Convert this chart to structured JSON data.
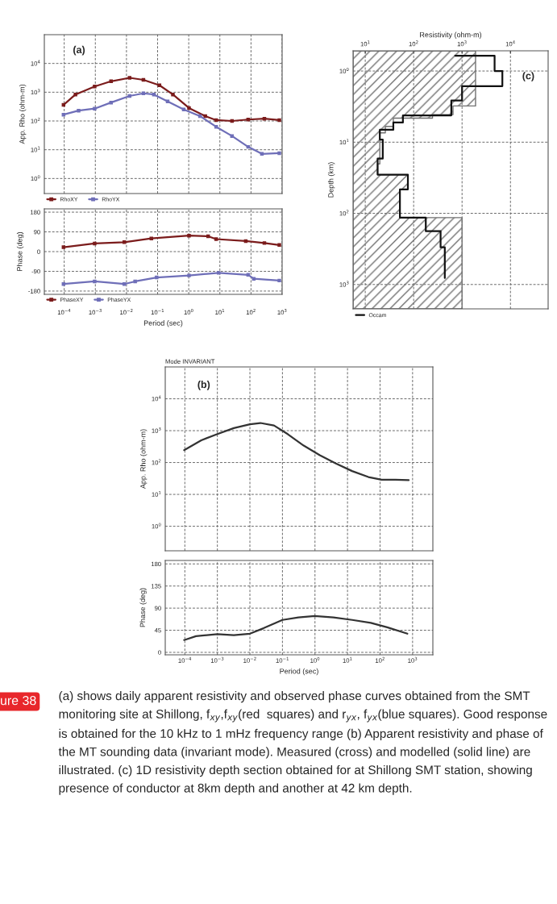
{
  "chart_data": [
    {
      "type": "line",
      "ylabel": "App. Rho (ohm-m)",
      "log": "xy",
      "marker": "square",
      "grid": true,
      "legend": "bottom left",
      "tick_labels": "y",
      "xlim": [
        2.3e-05,
        1000
      ],
      "ylim": [
        0.3,
        100000
      ],
      "xticks": [
        {
          "value": 0.0001,
          "label": null
        },
        {
          "value": 0.001,
          "label": null
        },
        {
          "value": 0.01,
          "label": null
        },
        {
          "value": 0.1,
          "label": null
        },
        {
          "value": 1,
          "label": null
        },
        {
          "value": 10,
          "label": null
        },
        {
          "value": 100,
          "label": null
        },
        {
          "value": 1000,
          "label": null
        }
      ],
      "yticks": [
        {
          "value": 1,
          "label": "10$^{0}$"
        },
        {
          "value": 10,
          "label": "10$^{1}$"
        },
        {
          "value": 100,
          "label": "10$^{2}$"
        },
        {
          "value": 1000,
          "label": "10$^{3}$"
        },
        {
          "value": 10000,
          "label": "10$^{4}$"
        }
      ],
      "annotations": [
        "(a)"
      ],
      "series": [
        {
          "name": "RhoXY",
          "color": "#7b1c1c",
          "x": [
            9.5e-05,
            0.00023,
            0.00095,
            0.0032,
            0.0126,
            0.035,
            0.115,
            0.31,
            1.02,
            3.4,
            7.6,
            24.5,
            81,
            269,
            813
          ],
          "values": [
            363,
            832,
            1585,
            2399,
            3162,
            2692,
            1738,
            832,
            282,
            148,
            107,
            100,
            112,
            120,
            107
          ]
        },
        {
          "name": "RhoYX",
          "color": "#6f6fb8",
          "x": [
            9.5e-05,
            0.00029,
            0.00095,
            0.0032,
            0.0126,
            0.035,
            0.076,
            0.21,
            0.69,
            2.3,
            7.6,
            24.5,
            81,
            224,
            813
          ],
          "values": [
            166,
            229,
            269,
            437,
            741,
            912,
            832,
            479,
            251,
            148,
            63,
            30,
            12.6,
            7.2,
            7.6
          ]
        }
      ]
    },
    {
      "type": "line",
      "ylabel": "Phase (deg)",
      "xlabel": "Period (sec)",
      "log": "x",
      "marker": "square",
      "grid": true,
      "legend": "bottom left",
      "xlim": [
        2.3e-05,
        1000
      ],
      "ylim": [
        -195,
        195
      ],
      "xticks": [
        {
          "value": 0.0001,
          "label": "10$^{−4}$"
        },
        {
          "value": 0.001,
          "label": "10$^{−3}$"
        },
        {
          "value": 0.01,
          "label": "10$^{−2}$"
        },
        {
          "value": 0.1,
          "label": "10$^{−1}$"
        },
        {
          "value": 1,
          "label": "10$^{0}$"
        },
        {
          "value": 10,
          "label": "10$^{1}$"
        },
        {
          "value": 100,
          "label": "10$^{2}$"
        },
        {
          "value": 1000,
          "label": "10$^{3}$"
        }
      ],
      "yticks": [
        -180,
        -90,
        0,
        90,
        180
      ],
      "series": [
        {
          "name": "PhaseXY",
          "color": "#7b1c1c",
          "x": [
            9.5e-05,
            0.00095,
            0.0085,
            0.063,
            1.02,
            4.2,
            7.6,
            68,
            269,
            813
          ],
          "values": [
            20,
            37,
            43,
            60,
            73,
            70,
            57,
            48,
            39,
            30
          ]
        },
        {
          "name": "PhaseYX",
          "color": "#6f6fb8",
          "x": [
            9.5e-05,
            0.00095,
            0.0085,
            0.019,
            0.093,
            1.02,
            9.1,
            81,
            123,
            813
          ],
          "values": [
            -148,
            -136,
            -148,
            -136,
            -118,
            -109,
            -97,
            -106,
            -124,
            -132
          ]
        }
      ]
    },
    {
      "type": "line",
      "xlabel": "Resistivity (ohm-m)",
      "ylabel": "Depth (km)",
      "log": "xy",
      "orientation": "horizontal",
      "grid": true,
      "legend": "bottom left",
      "xlim": [
        5.6,
        60000
      ],
      "ylim": [
        2200,
        0.52
      ],
      "xticks": [
        {
          "value": 10,
          "label": "10$^{1}$"
        },
        {
          "value": 100,
          "label": "10$^{2}$"
        },
        {
          "value": 1000,
          "label": "10$^{3}$"
        },
        {
          "value": 10000,
          "label": "10$^{4}$"
        }
      ],
      "yticks": [
        {
          "value": 1,
          "label": "10$^{0}$"
        },
        {
          "value": 10,
          "label": "10$^{1}$"
        },
        {
          "value": 100,
          "label": "10$^{2}$"
        },
        {
          "value": 1000,
          "label": "10$^{3}$"
        }
      ],
      "annotations": [
        "(c)"
      ],
      "series": [
        {
          "type": "area",
          "color": "#707070",
          "x": [
            0.52,
            3.1,
            3.1,
            4.1,
            4.1,
            4.6,
            4.6,
            6.0,
            6.0,
            7.4,
            7.4,
            20.2,
            20.2,
            28.6,
            28.6,
            46,
            46,
            115,
            115,
            2200
          ],
          "values": [
            1900,
            1900,
            650,
            650,
            245,
            245,
            38,
            38,
            26,
            26,
            20,
            20,
            18,
            18,
            76,
            76,
            52,
            52,
            1000,
            1000
          ]
        },
        {
          "name": "Occam",
          "color": "#111111",
          "x": [
            0.61,
            0.61,
            1.0,
            1.0,
            1.63,
            1.63,
            2.6,
            2.6,
            4.2,
            4.2,
            5.3,
            5.3,
            6.7,
            6.7,
            9.2,
            9.2,
            17,
            17,
            28.6,
            28.6,
            46,
            46,
            115,
            115,
            178,
            178,
            300,
            300,
            810
          ],
          "values": [
            720,
            4700,
            4700,
            6800,
            6800,
            1000,
            1000,
            600,
            600,
            60,
            60,
            38,
            38,
            20,
            20,
            23,
            23,
            18,
            18,
            76,
            76,
            52,
            52,
            178,
            178,
            360,
            360,
            440,
            440
          ]
        }
      ]
    },
    {
      "type": "line",
      "title": "Mode INVARIANT",
      "ylabel": "App. Rho (ohm-m)",
      "log": "xy",
      "grid": true,
      "tick_labels": "y",
      "xlim": [
        2.5e-05,
        4200
      ],
      "ylim": [
        0.17,
        100000
      ],
      "xticks": [
        {
          "value": 0.0001,
          "label": null
        },
        {
          "value": 0.001,
          "label": null
        },
        {
          "value": 0.01,
          "label": null
        },
        {
          "value": 0.1,
          "label": null
        },
        {
          "value": 1,
          "label": null
        },
        {
          "value": 10,
          "label": null
        },
        {
          "value": 100,
          "label": null
        },
        {
          "value": 1000,
          "label": null
        }
      ],
      "yticks": [
        {
          "value": 1,
          "label": "10$^{0}$"
        },
        {
          "value": 10,
          "label": "10$^{1}$"
        },
        {
          "value": 100,
          "label": "10$^{2}$"
        },
        {
          "value": 1000,
          "label": "10$^{3}$"
        },
        {
          "value": 10000,
          "label": "10$^{4}$"
        }
      ],
      "annotations": [
        "(b)"
      ],
      "series": [
        {
          "color": "#333333",
          "x": [
            9.5e-05,
            0.00032,
            0.001,
            0.0032,
            0.01,
            0.021,
            0.055,
            0.145,
            0.45,
            1.41,
            4.4,
            13.8,
            44,
            112,
            295,
            760
          ],
          "values": [
            245,
            500,
            780,
            1200,
            1580,
            1740,
            1450,
            780,
            340,
            170,
            93,
            54,
            35,
            29,
            29,
            28
          ]
        }
      ]
    },
    {
      "type": "line",
      "ylabel": "Phase (deg)",
      "xlabel": "Period (sec)",
      "log": "x",
      "grid": true,
      "xlim": [
        2.5e-05,
        4200
      ],
      "ylim": [
        -5,
        187
      ],
      "xticks": [
        {
          "value": 0.0001,
          "label": "10$^{−4}$"
        },
        {
          "value": 0.001,
          "label": "10$^{−3}$"
        },
        {
          "value": 0.01,
          "label": "10$^{−2}$"
        },
        {
          "value": 0.1,
          "label": "10$^{−1}$"
        },
        {
          "value": 1,
          "label": "10$^{0}$"
        },
        {
          "value": 10,
          "label": "10$^{1}$"
        },
        {
          "value": 100,
          "label": "10$^{2}$"
        },
        {
          "value": 1000,
          "label": "10$^{3}$"
        }
      ],
      "yticks": [
        0,
        45,
        90,
        135,
        180
      ],
      "annotations": [
        "ure 38",
        "(a) shows daily apparent resistivity and observed phase curves obtained from the SMT monitoring site at Shillong, f$_{xy}$,f$_{xy}$(red  squares) and r$_{yx}$, f$_{yx}$(blue squares). Good response is obtained for the 10 kHz to 1 mHz frequency range (b) Apparent resistivity and phase of the MT sounding data (invariant mode). Measured (cross) and modelled (solid line) are illustrated. (c) 1D resistivity depth section obtained for at Shillong SMT station, showing presence of conductor at 8km depth and another at 42 km depth."
      ],
      "series": [
        {
          "color": "#333333",
          "x": [
            9.5e-05,
            0.00022,
            0.001,
            0.0032,
            0.01,
            0.026,
            0.1,
            0.31,
            0.98,
            3.7,
            14,
            52,
            166,
            690
          ],
          "values": [
            25,
            33,
            37,
            35,
            38,
            49,
            66,
            71,
            74,
            71,
            66,
            60,
            51,
            38
          ]
        }
      ]
    }
  ]
}
